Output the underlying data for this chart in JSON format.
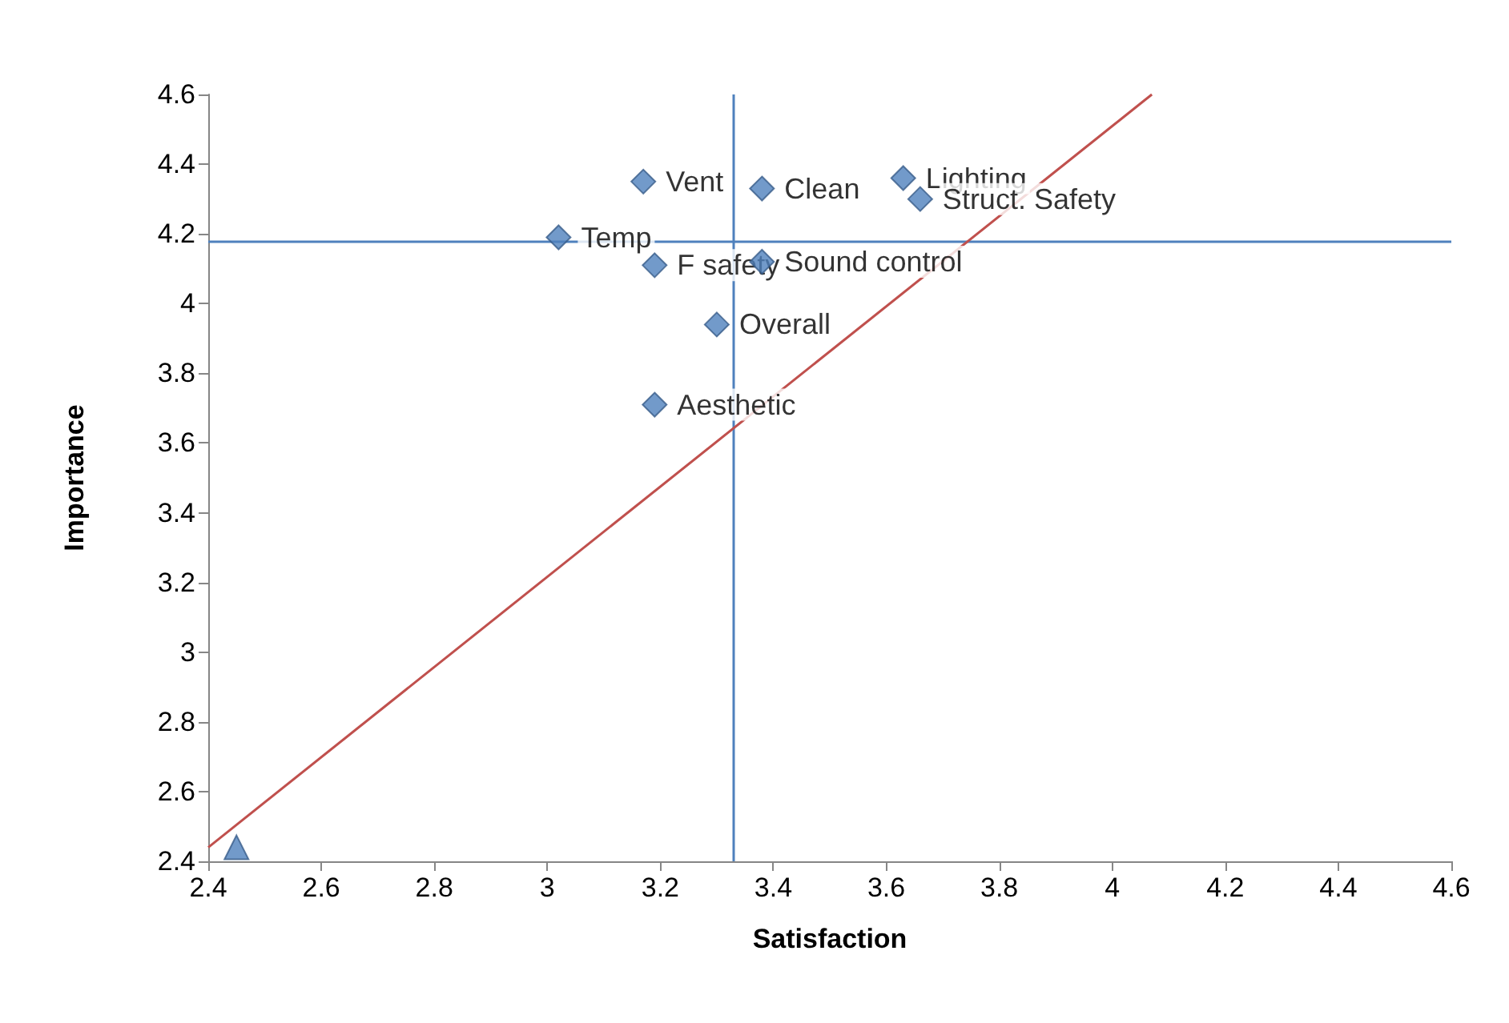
{
  "chart_data": {
    "type": "scatter",
    "xlabel": "Satisfaction",
    "ylabel": "Importance",
    "xlim": [
      2.4,
      4.6
    ],
    "xticks": [
      2.4,
      2.6,
      2.8,
      3,
      3.2,
      3.4,
      3.6,
      3.8,
      4,
      4.2,
      4.4,
      4.6
    ],
    "ylim": [
      2.4,
      4.6
    ],
    "yticks": [
      2.4,
      2.6,
      2.8,
      3,
      3.2,
      3.4,
      3.6,
      3.8,
      4,
      4.2,
      4.4,
      4.6
    ],
    "grid": false,
    "series": [
      {
        "color": "#4f81bd",
        "marker": "diamond",
        "x": [
          3.17,
          3.38,
          3.63,
          3.66,
          3.02,
          3.19,
          3.38,
          3.3,
          3.19
        ],
        "values": [
          4.35,
          4.33,
          4.36,
          4.3,
          4.19,
          4.11,
          4.12,
          3.94,
          3.71
        ]
      },
      {
        "color": "#4f81bd",
        "marker": "triangle",
        "x": [
          2.45
        ],
        "values": [
          2.44
        ]
      },
      {
        "type": "line",
        "color": "#c0504d",
        "marker": "none",
        "x": [
          2.4,
          4.07
        ],
        "values": [
          2.44,
          4.6
        ]
      }
    ],
    "ref_lines": [
      {
        "axis": "x",
        "value": 3.33,
        "color": "#4f81bd"
      },
      {
        "axis": "y",
        "value": 4.18,
        "color": "#4f81bd"
      }
    ],
    "annotations": [
      {
        "text": "Vent",
        "x": 3.17,
        "y": 4.35
      },
      {
        "text": "Clean",
        "x": 3.38,
        "y": 4.33
      },
      {
        "text": "Lighting",
        "x": 3.63,
        "y": 4.36
      },
      {
        "text": "Struct. Safety",
        "x": 3.66,
        "y": 4.3
      },
      {
        "text": "Temp",
        "x": 3.02,
        "y": 4.19
      },
      {
        "text": "F safety",
        "x": 3.19,
        "y": 4.11
      },
      {
        "text": "Sound control",
        "x": 3.38,
        "y": 4.12
      },
      {
        "text": "Overall",
        "x": 3.3,
        "y": 3.94
      },
      {
        "text": "Aesthetic",
        "x": 3.19,
        "y": 3.71
      }
    ]
  }
}
